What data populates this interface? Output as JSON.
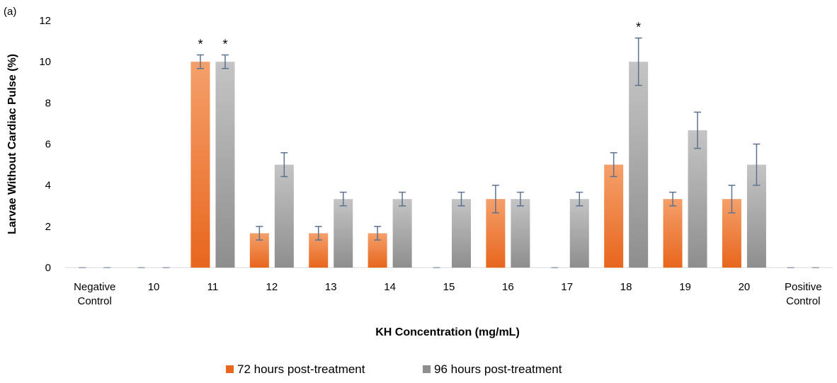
{
  "panel_label": "(a)",
  "colors": {
    "series1_light": "#f4a06b",
    "series1_dark": "#e8661d",
    "series2_light": "#c4c4c4",
    "series2_dark": "#8e8e8e",
    "error_bar": "#5b7290",
    "axis": "#d9d9d9"
  },
  "chart_data": {
    "type": "bar",
    "categories": [
      [
        "Negative",
        "Control"
      ],
      [
        "10"
      ],
      [
        "11"
      ],
      [
        "12"
      ],
      [
        "13"
      ],
      [
        "14"
      ],
      [
        "15"
      ],
      [
        "16"
      ],
      [
        "17"
      ],
      [
        "18"
      ],
      [
        "19"
      ],
      [
        "20"
      ],
      [
        "Positive",
        "Control"
      ]
    ],
    "series": [
      {
        "name": "72 hours post-treatment",
        "values": [
          0,
          0,
          10,
          1.67,
          1.67,
          1.67,
          0,
          3.33,
          0,
          5,
          3.33,
          3.33,
          0
        ],
        "errors": [
          0,
          0,
          0.33,
          0.33,
          0.33,
          0.33,
          0,
          0.67,
          0,
          0.58,
          0.33,
          0.67,
          0
        ],
        "significant": [
          false,
          false,
          true,
          false,
          false,
          false,
          false,
          false,
          false,
          false,
          false,
          false,
          false
        ]
      },
      {
        "name": "96 hours post-treatment",
        "values": [
          0,
          0,
          10,
          5,
          3.33,
          3.33,
          3.33,
          3.33,
          3.33,
          10,
          6.67,
          5,
          0
        ],
        "errors": [
          0,
          0,
          0.33,
          0.58,
          0.33,
          0.33,
          0.33,
          0.33,
          0.33,
          1.15,
          0.88,
          1.0,
          0
        ],
        "significant": [
          false,
          false,
          true,
          false,
          false,
          false,
          false,
          false,
          false,
          true,
          false,
          false,
          false
        ]
      }
    ],
    "significance_marker": "*",
    "xlabel": "KH Concentration (mg/mL)",
    "ylabel": "Larvae Without Cardiac Pulse (%)",
    "ylim": [
      0,
      12
    ],
    "yticks": [
      0,
      2,
      4,
      6,
      8,
      10,
      12
    ],
    "grid": false,
    "legend_position": "bottom"
  }
}
